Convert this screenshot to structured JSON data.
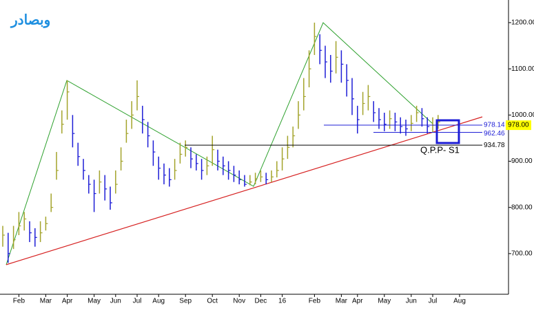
{
  "chart_data": {
    "type": "ohlc",
    "logo": "وبصادر",
    "categories": [
      null,
      null,
      null,
      "Feb",
      null,
      null,
      null,
      null,
      "Mar",
      null,
      null,
      null,
      "Apr",
      null,
      null,
      null,
      null,
      "May",
      null,
      null,
      null,
      "Jun",
      null,
      null,
      null,
      "Jul",
      null,
      null,
      null,
      "Aug",
      null,
      null,
      null,
      null,
      "Sep",
      null,
      null,
      null,
      null,
      "Oct",
      null,
      null,
      null,
      null,
      "Nov",
      null,
      null,
      null,
      "Dec",
      null,
      null,
      null,
      "16",
      null,
      null,
      null,
      null,
      null,
      "Feb",
      null,
      null,
      null,
      null,
      "Mar",
      null,
      null,
      "Apr",
      null,
      null,
      null,
      null,
      "May",
      null,
      null,
      null,
      null,
      "Jun",
      null,
      null,
      null,
      "Jul",
      null,
      null,
      null,
      null,
      "Aug"
    ],
    "high": [
      760,
      745,
      760,
      790,
      790,
      770,
      755,
      770,
      780,
      830,
      920,
      1010,
      1075,
      1000,
      940,
      905,
      870,
      860,
      880,
      870,
      845,
      880,
      930,
      990,
      1030,
      1075,
      1020,
      985,
      945,
      910,
      895,
      885,
      905,
      940,
      945,
      930,
      915,
      905,
      910,
      955,
      925,
      910,
      900,
      890,
      880,
      870,
      870,
      875,
      880,
      875,
      880,
      900,
      930,
      955,
      975,
      1030,
      1080,
      1140,
      1200,
      1175,
      1150,
      1130,
      1160,
      1140,
      1110,
      1080,
      1020,
      1050,
      1065,
      1030,
      1015,
      1005,
      1010,
      1005,
      995,
      990,
      1000,
      1020,
      1015,
      995,
      995,
      1000,
      null,
      null,
      null,
      null
    ],
    "low": [
      715,
      680,
      710,
      740,
      750,
      725,
      715,
      725,
      750,
      790,
      860,
      960,
      990,
      930,
      890,
      860,
      830,
      790,
      830,
      815,
      795,
      830,
      880,
      940,
      970,
      1010,
      960,
      930,
      890,
      860,
      850,
      845,
      860,
      895,
      910,
      885,
      880,
      860,
      870,
      890,
      880,
      870,
      860,
      855,
      850,
      845,
      848,
      850,
      855,
      850,
      855,
      865,
      880,
      905,
      930,
      970,
      1010,
      1060,
      1130,
      1110,
      1080,
      1070,
      1090,
      1070,
      1040,
      1000,
      960,
      1000,
      1010,
      985,
      970,
      965,
      970,
      965,
      960,
      955,
      965,
      985,
      975,
      960,
      962,
      970,
      null,
      null,
      null,
      null
    ],
    "close": [
      740,
      700,
      730,
      760,
      775,
      745,
      735,
      745,
      765,
      800,
      880,
      980,
      1050,
      960,
      910,
      880,
      850,
      830,
      855,
      840,
      810,
      850,
      900,
      960,
      1000,
      1040,
      990,
      955,
      920,
      885,
      870,
      860,
      880,
      915,
      930,
      905,
      895,
      880,
      890,
      925,
      900,
      890,
      880,
      870,
      860,
      850,
      855,
      862,
      866,
      860,
      866,
      880,
      905,
      930,
      955,
      1000,
      1040,
      1100,
      1170,
      1140,
      1115,
      1095,
      1125,
      1110,
      1075,
      1035,
      990,
      1025,
      1040,
      1005,
      990,
      980,
      992,
      985,
      975,
      970,
      982,
      1005,
      992,
      975,
      978,
      985,
      null,
      null,
      null,
      null
    ],
    "up_color": "#a3a32a",
    "down_color": "#1c1cd6",
    "ylim": [
      612,
      1249
    ],
    "yticks": [
      {
        "value": 700,
        "label": "700.00"
      },
      {
        "value": 800,
        "label": "800.00"
      },
      {
        "value": 900,
        "label": "900.00"
      },
      {
        "value": 1000,
        "label": "1000.00"
      },
      {
        "value": 1100,
        "label": "1100.00"
      },
      {
        "value": 1200,
        "label": "1200.00"
      }
    ],
    "levels": [
      {
        "value": 978.14,
        "label": "978.14",
        "color": "#1c1cd6"
      },
      {
        "value": 962.46,
        "label": "962.46",
        "color": "#1c1cd6"
      },
      {
        "value": 934.78,
        "label": "934.78",
        "color": "#000000"
      }
    ],
    "last_price": {
      "value": 978,
      "label": "978.00"
    },
    "annotation": "Q.P.P- S1"
  }
}
